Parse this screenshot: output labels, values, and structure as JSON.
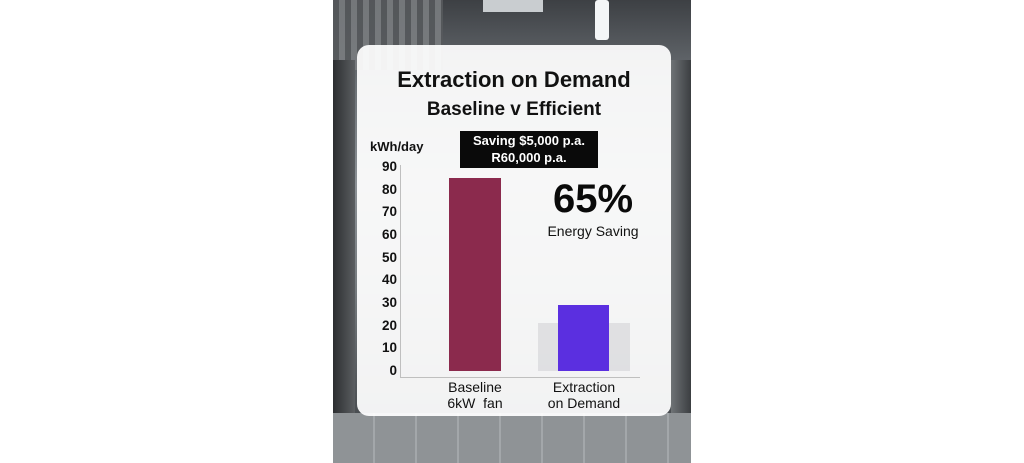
{
  "chart_data": {
    "type": "bar",
    "title": "Extraction on Demand",
    "subtitle": "Baseline v Efficient",
    "ylabel": "kWh/day",
    "xlabel": "",
    "ylim": [
      0,
      90
    ],
    "yticks": [
      0,
      10,
      20,
      30,
      40,
      50,
      60,
      70,
      80,
      90
    ],
    "grid": false,
    "categories": [
      {
        "line1": "Baseline",
        "line2": "6kW  fan"
      },
      {
        "line1": "Extraction",
        "line2": "on Demand"
      }
    ],
    "values": [
      85,
      29
    ],
    "bar_colors": [
      "#8b2a4d",
      "#5b2fe0"
    ],
    "annotations": {
      "saving_line1": "Saving $5,000 p.a.",
      "saving_line2": "R60,000 p.a.",
      "percent": "65%",
      "percent_label": "Energy Saving"
    }
  }
}
